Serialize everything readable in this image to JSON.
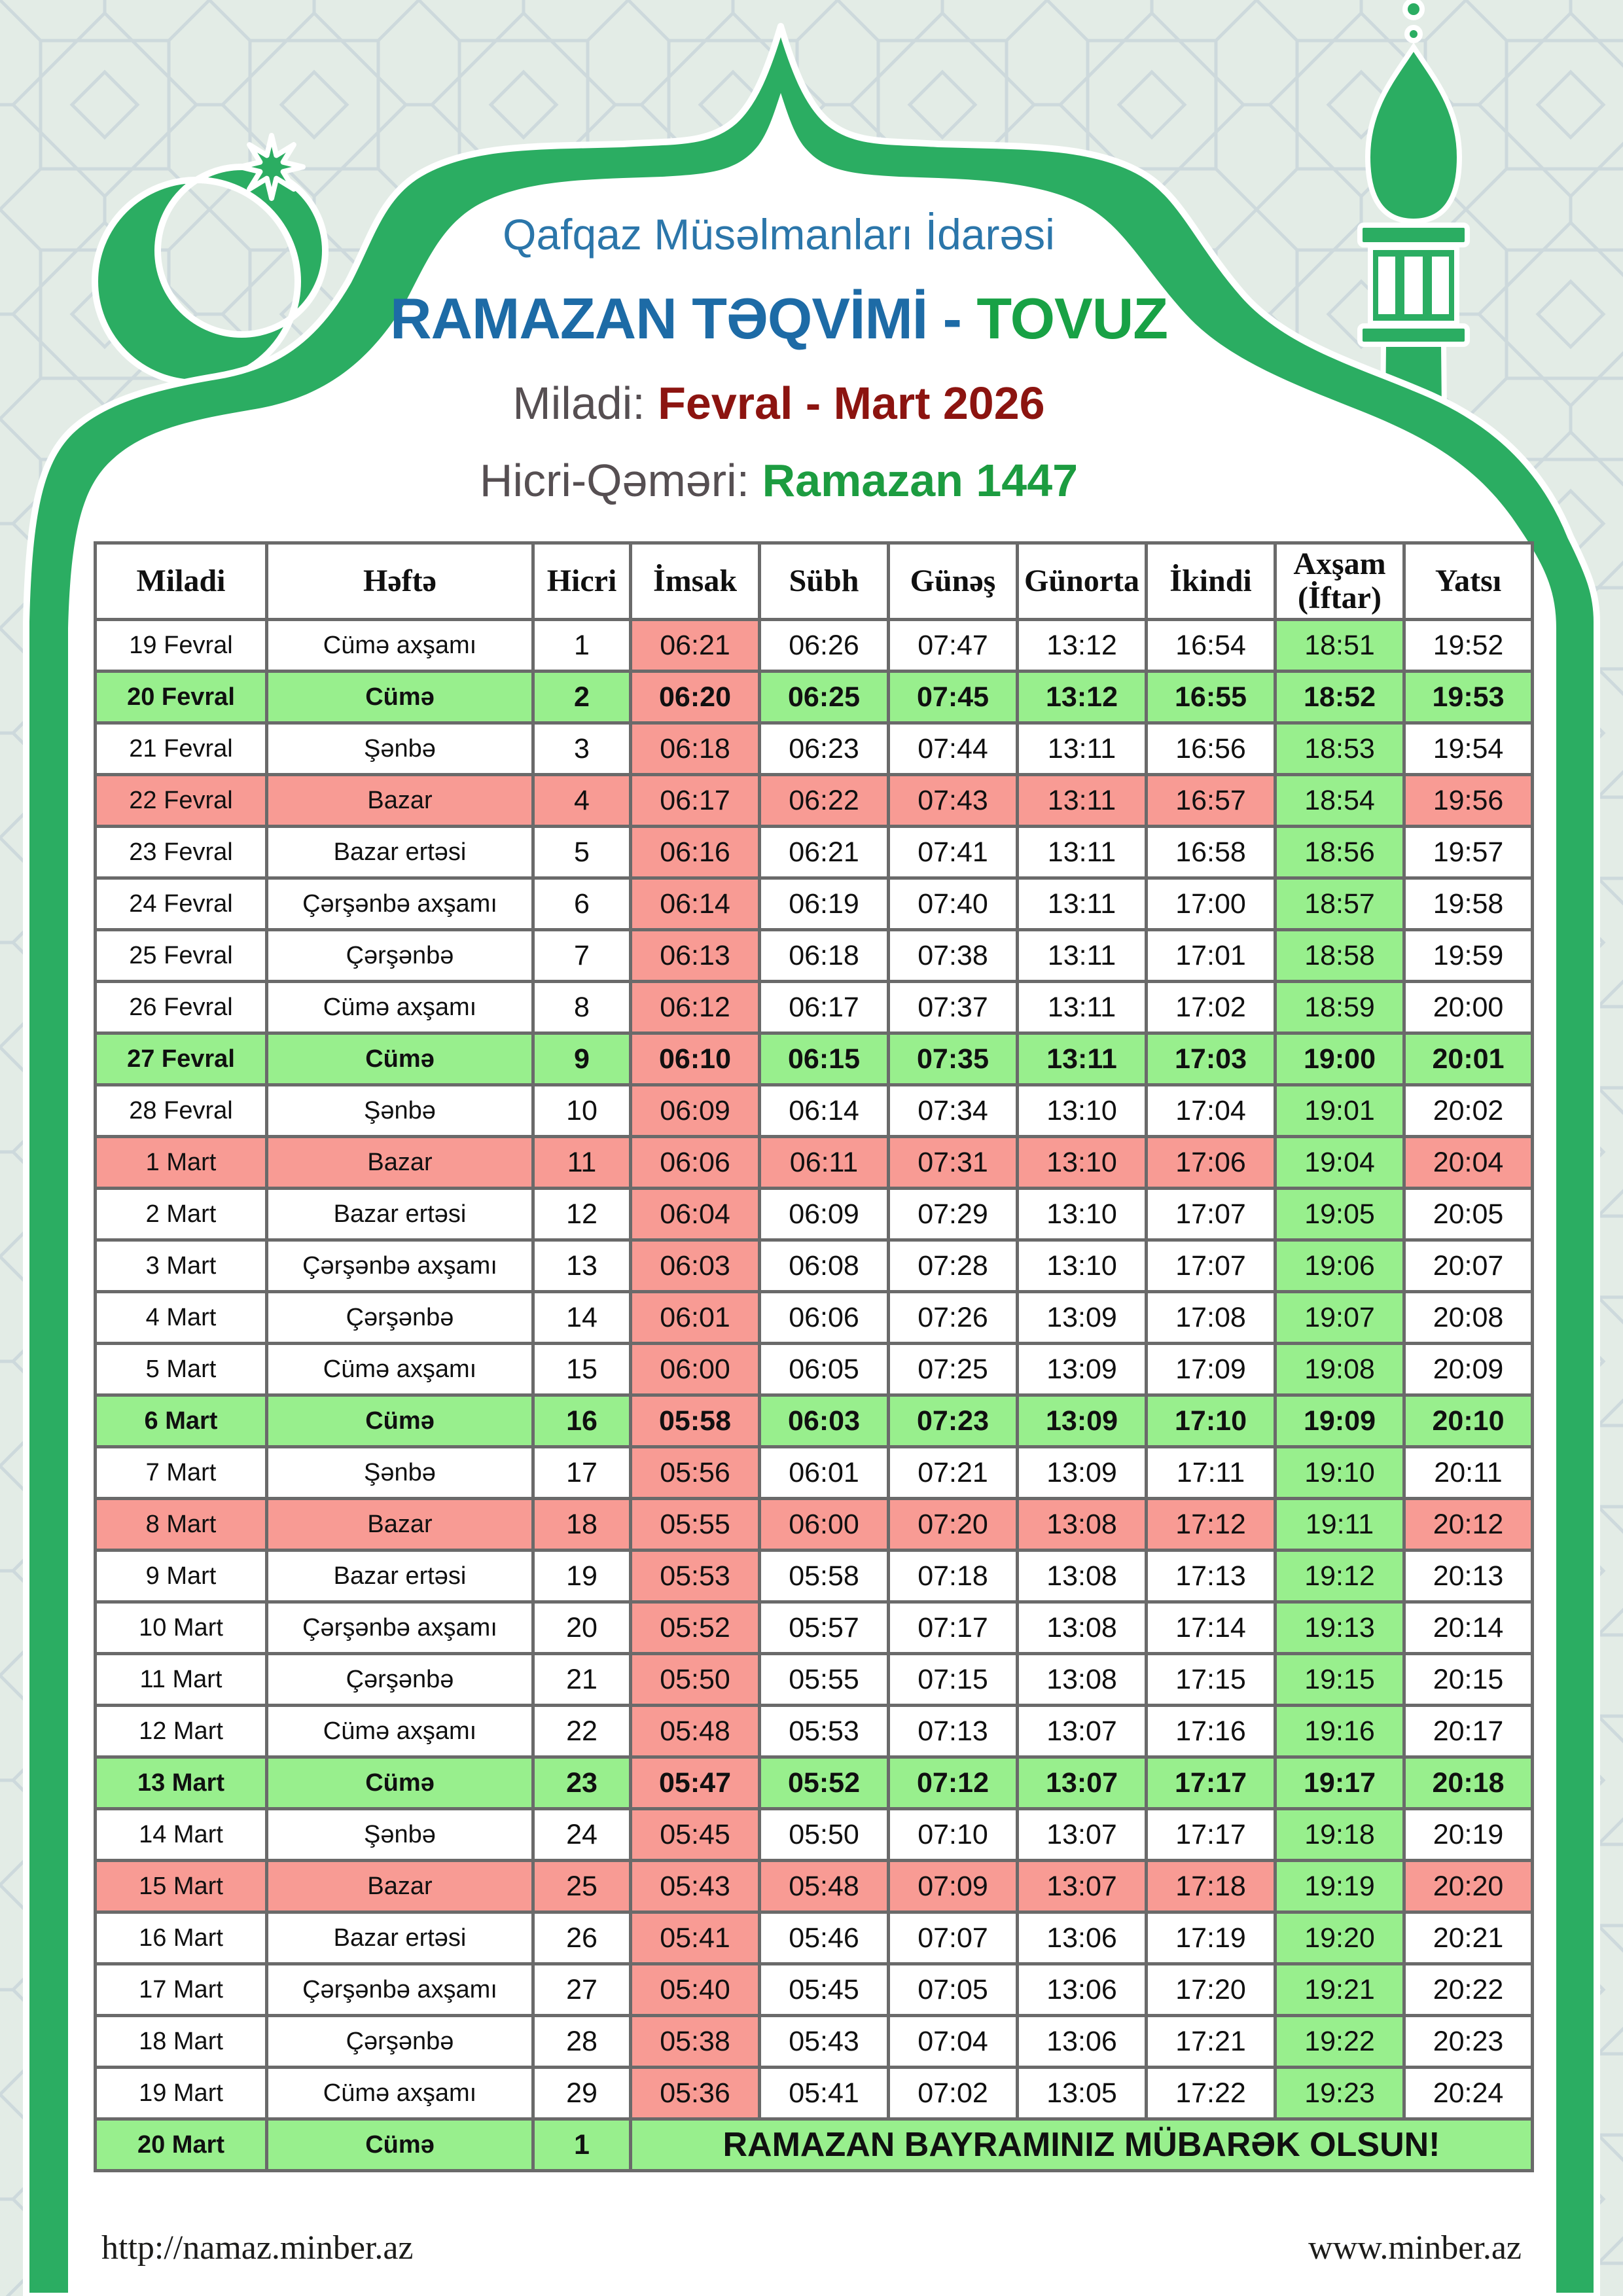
{
  "header": {
    "organization": "Qafqaz Müsəlmanları İdarəsi",
    "title_main": "RAMAZAN TƏQVİMİ - ",
    "title_city": "TOVUZ",
    "miladi_label": "Miladi: ",
    "miladi_value": "Fevral - Mart 2026",
    "hicri_label": "Hicri-Qəməri: ",
    "hicri_value": "Ramazan 1447"
  },
  "table": {
    "columns": [
      {
        "key": "miladi",
        "label": "Miladi"
      },
      {
        "key": "hefte",
        "label": "Həftə"
      },
      {
        "key": "hicri",
        "label": "Hicri"
      },
      {
        "key": "imsak",
        "label": "İmsak"
      },
      {
        "key": "subh",
        "label": "Sübh"
      },
      {
        "key": "gunes",
        "label": "Günəş"
      },
      {
        "key": "gunorta",
        "label": "Günorta"
      },
      {
        "key": "ikindi",
        "label": "İkindi"
      },
      {
        "key": "aksam",
        "label": "Axşam",
        "sub": "(İftar)"
      },
      {
        "key": "yatsi",
        "label": "Yatsı"
      }
    ],
    "rows": [
      {
        "miladi": "19 Fevral",
        "hefte": "Cümə axşamı",
        "hicri": "1",
        "times": [
          "06:21",
          "06:26",
          "07:47",
          "13:12",
          "16:54",
          "18:51",
          "19:52"
        ],
        "type": "normal"
      },
      {
        "miladi": "20 Fevral",
        "hefte": "Cümə",
        "hicri": "2",
        "times": [
          "06:20",
          "06:25",
          "07:45",
          "13:12",
          "16:55",
          "18:52",
          "19:53"
        ],
        "type": "friday"
      },
      {
        "miladi": "21 Fevral",
        "hefte": "Şənbə",
        "hicri": "3",
        "times": [
          "06:18",
          "06:23",
          "07:44",
          "13:11",
          "16:56",
          "18:53",
          "19:54"
        ],
        "type": "normal"
      },
      {
        "miladi": "22 Fevral",
        "hefte": "Bazar",
        "hicri": "4",
        "times": [
          "06:17",
          "06:22",
          "07:43",
          "13:11",
          "16:57",
          "18:54",
          "19:56"
        ],
        "type": "sunday"
      },
      {
        "miladi": "23 Fevral",
        "hefte": "Bazar ertəsi",
        "hicri": "5",
        "times": [
          "06:16",
          "06:21",
          "07:41",
          "13:11",
          "16:58",
          "18:56",
          "19:57"
        ],
        "type": "normal"
      },
      {
        "miladi": "24 Fevral",
        "hefte": "Çərşənbə axşamı",
        "hicri": "6",
        "times": [
          "06:14",
          "06:19",
          "07:40",
          "13:11",
          "17:00",
          "18:57",
          "19:58"
        ],
        "type": "normal"
      },
      {
        "miladi": "25 Fevral",
        "hefte": "Çərşənbə",
        "hicri": "7",
        "times": [
          "06:13",
          "06:18",
          "07:38",
          "13:11",
          "17:01",
          "18:58",
          "19:59"
        ],
        "type": "normal"
      },
      {
        "miladi": "26 Fevral",
        "hefte": "Cümə axşamı",
        "hicri": "8",
        "times": [
          "06:12",
          "06:17",
          "07:37",
          "13:11",
          "17:02",
          "18:59",
          "20:00"
        ],
        "type": "normal"
      },
      {
        "miladi": "27 Fevral",
        "hefte": "Cümə",
        "hicri": "9",
        "times": [
          "06:10",
          "06:15",
          "07:35",
          "13:11",
          "17:03",
          "19:00",
          "20:01"
        ],
        "type": "friday"
      },
      {
        "miladi": "28 Fevral",
        "hefte": "Şənbə",
        "hicri": "10",
        "times": [
          "06:09",
          "06:14",
          "07:34",
          "13:10",
          "17:04",
          "19:01",
          "20:02"
        ],
        "type": "normal"
      },
      {
        "miladi": "1 Mart",
        "hefte": "Bazar",
        "hicri": "11",
        "times": [
          "06:06",
          "06:11",
          "07:31",
          "13:10",
          "17:06",
          "19:04",
          "20:04"
        ],
        "type": "sunday"
      },
      {
        "miladi": "2 Mart",
        "hefte": "Bazar ertəsi",
        "hicri": "12",
        "times": [
          "06:04",
          "06:09",
          "07:29",
          "13:10",
          "17:07",
          "19:05",
          "20:05"
        ],
        "type": "normal"
      },
      {
        "miladi": "3 Mart",
        "hefte": "Çərşənbə axşamı",
        "hicri": "13",
        "times": [
          "06:03",
          "06:08",
          "07:28",
          "13:10",
          "17:07",
          "19:06",
          "20:07"
        ],
        "type": "normal"
      },
      {
        "miladi": "4 Mart",
        "hefte": "Çərşənbə",
        "hicri": "14",
        "times": [
          "06:01",
          "06:06",
          "07:26",
          "13:09",
          "17:08",
          "19:07",
          "20:08"
        ],
        "type": "normal"
      },
      {
        "miladi": "5 Mart",
        "hefte": "Cümə axşamı",
        "hicri": "15",
        "times": [
          "06:00",
          "06:05",
          "07:25",
          "13:09",
          "17:09",
          "19:08",
          "20:09"
        ],
        "type": "normal"
      },
      {
        "miladi": "6 Mart",
        "hefte": "Cümə",
        "hicri": "16",
        "times": [
          "05:58",
          "06:03",
          "07:23",
          "13:09",
          "17:10",
          "19:09",
          "20:10"
        ],
        "type": "friday"
      },
      {
        "miladi": "7 Mart",
        "hefte": "Şənbə",
        "hicri": "17",
        "times": [
          "05:56",
          "06:01",
          "07:21",
          "13:09",
          "17:11",
          "19:10",
          "20:11"
        ],
        "type": "normal"
      },
      {
        "miladi": "8 Mart",
        "hefte": "Bazar",
        "hicri": "18",
        "times": [
          "05:55",
          "06:00",
          "07:20",
          "13:08",
          "17:12",
          "19:11",
          "20:12"
        ],
        "type": "sunday"
      },
      {
        "miladi": "9 Mart",
        "hefte": "Bazar ertəsi",
        "hicri": "19",
        "times": [
          "05:53",
          "05:58",
          "07:18",
          "13:08",
          "17:13",
          "19:12",
          "20:13"
        ],
        "type": "normal"
      },
      {
        "miladi": "10 Mart",
        "hefte": "Çərşənbə axşamı",
        "hicri": "20",
        "times": [
          "05:52",
          "05:57",
          "07:17",
          "13:08",
          "17:14",
          "19:13",
          "20:14"
        ],
        "type": "normal"
      },
      {
        "miladi": "11 Mart",
        "hefte": "Çərşənbə",
        "hicri": "21",
        "times": [
          "05:50",
          "05:55",
          "07:15",
          "13:08",
          "17:15",
          "19:15",
          "20:15"
        ],
        "type": "normal"
      },
      {
        "miladi": "12 Mart",
        "hefte": "Cümə axşamı",
        "hicri": "22",
        "times": [
          "05:48",
          "05:53",
          "07:13",
          "13:07",
          "17:16",
          "19:16",
          "20:17"
        ],
        "type": "normal"
      },
      {
        "miladi": "13 Mart",
        "hefte": "Cümə",
        "hicri": "23",
        "times": [
          "05:47",
          "05:52",
          "07:12",
          "13:07",
          "17:17",
          "19:17",
          "20:18"
        ],
        "type": "friday"
      },
      {
        "miladi": "14 Mart",
        "hefte": "Şənbə",
        "hicri": "24",
        "times": [
          "05:45",
          "05:50",
          "07:10",
          "13:07",
          "17:17",
          "19:18",
          "20:19"
        ],
        "type": "normal"
      },
      {
        "miladi": "15 Mart",
        "hefte": "Bazar",
        "hicri": "25",
        "times": [
          "05:43",
          "05:48",
          "07:09",
          "13:07",
          "17:18",
          "19:19",
          "20:20"
        ],
        "type": "sunday"
      },
      {
        "miladi": "16 Mart",
        "hefte": "Bazar ertəsi",
        "hicri": "26",
        "times": [
          "05:41",
          "05:46",
          "07:07",
          "13:06",
          "17:19",
          "19:20",
          "20:21"
        ],
        "type": "normal"
      },
      {
        "miladi": "17 Mart",
        "hefte": "Çərşənbə axşamı",
        "hicri": "27",
        "times": [
          "05:40",
          "05:45",
          "07:05",
          "13:06",
          "17:20",
          "19:21",
          "20:22"
        ],
        "type": "normal"
      },
      {
        "miladi": "18 Mart",
        "hefte": "Çərşənbə",
        "hicri": "28",
        "times": [
          "05:38",
          "05:43",
          "07:04",
          "13:06",
          "17:21",
          "19:22",
          "20:23"
        ],
        "type": "normal"
      },
      {
        "miladi": "19 Mart",
        "hefte": "Cümə axşamı",
        "hicri": "29",
        "times": [
          "05:36",
          "05:41",
          "07:02",
          "13:05",
          "17:22",
          "19:23",
          "20:24"
        ],
        "type": "normal"
      }
    ],
    "bayram_row": {
      "miladi": "20 Mart",
      "hefte": "Cümə",
      "hicri": "1",
      "message": "RAMAZAN BAYRAMINIZ MÜBARƏK OLSUN!"
    }
  },
  "footer": {
    "left_url": "http://namaz.minber.az",
    "right_url": "www.minber.az"
  },
  "colors": {
    "frame_green": "#2bad62",
    "friday_row_green": "#98ef8d",
    "sunday_row_pink": "#f89b94",
    "imsak_column_pink": "#f89b94",
    "iftar_column_green": "#98ef8d",
    "table_border_gray": "#6a6a6a",
    "title_blue": "#1d6ba6",
    "city_green": "#18a145",
    "miladi_value_red": "#8c1410",
    "hicri_value_green": "#1c9c40",
    "pattern_background": "#e3ece6",
    "pattern_line": "#c8d5da"
  },
  "decorations": [
    "crescent-icon",
    "star-icon",
    "minaret-icon",
    "dome-frame"
  ]
}
